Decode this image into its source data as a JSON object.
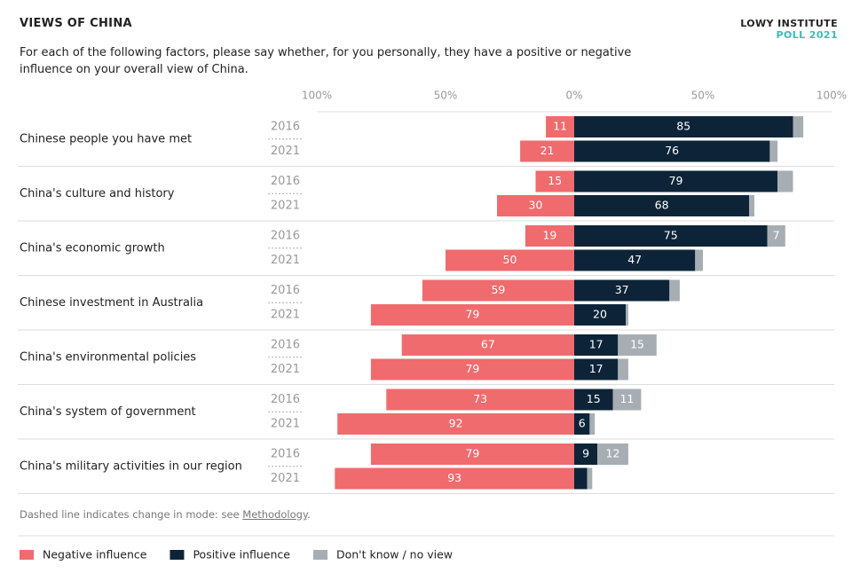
{
  "chart_data": {
    "type": "diverging-bar",
    "title": "VIEWS OF CHINA",
    "subtitle": "For each of the following factors, please say whether, for you personally, they have a positive or negative influence on your overall view of China.",
    "brand": "LOWY INSTITUTE",
    "brand_poll": "POLL 2021",
    "note": "Dashed line indicates change in mode: see ",
    "note_link": "Methodology",
    "note_end": ".",
    "categories": [
      "Chinese people you have met",
      "China's culture and history",
      "China's economic growth",
      "Chinese investment in Australia",
      "China's environmental policies",
      "China's system of government",
      "China's military activities in our region"
    ],
    "years": [
      "2016",
      "2021"
    ],
    "xlim": [
      -100,
      100
    ],
    "xticks": [
      {
        "value": -100,
        "label": "100%"
      },
      {
        "value": -50,
        "label": "50%"
      },
      {
        "value": 0,
        "label": "0%"
      },
      {
        "value": 50,
        "label": "50%"
      },
      {
        "value": 100,
        "label": "100%"
      }
    ],
    "series": [
      {
        "name": "Negative influence",
        "color": "#ef6b6e",
        "side": "left",
        "values": [
          [
            11,
            21
          ],
          [
            15,
            30
          ],
          [
            19,
            50
          ],
          [
            59,
            79
          ],
          [
            67,
            79
          ],
          [
            73,
            92
          ],
          [
            79,
            93
          ]
        ],
        "value_labels": [
          [
            "11",
            "21"
          ],
          [
            "15",
            "30"
          ],
          [
            "19",
            "50"
          ],
          [
            "59",
            "79"
          ],
          [
            "67",
            "79"
          ],
          [
            "73",
            "92"
          ],
          [
            "79",
            "93"
          ]
        ]
      },
      {
        "name": "Positive influence",
        "color": "#0d2438",
        "side": "right",
        "values": [
          [
            85,
            76
          ],
          [
            79,
            68
          ],
          [
            75,
            47
          ],
          [
            37,
            20
          ],
          [
            17,
            17
          ],
          [
            15,
            6
          ],
          [
            9,
            5
          ]
        ],
        "value_labels": [
          [
            "85",
            "76"
          ],
          [
            "79",
            "68"
          ],
          [
            "75",
            "47"
          ],
          [
            "37",
            "20"
          ],
          [
            "17",
            "17"
          ],
          [
            "15",
            "6"
          ],
          [
            "9",
            null
          ]
        ]
      },
      {
        "name": "Don't know / no view",
        "color": "#a6aeb4",
        "side": "right",
        "values": [
          [
            4,
            3
          ],
          [
            6,
            2
          ],
          [
            7,
            3
          ],
          [
            4,
            1
          ],
          [
            15,
            4
          ],
          [
            11,
            2
          ],
          [
            12,
            2
          ]
        ],
        "value_labels": [
          [
            null,
            null
          ],
          [
            null,
            null
          ],
          [
            "7",
            null
          ],
          [
            null,
            null
          ],
          [
            "15",
            null
          ],
          [
            "11",
            null
          ],
          [
            "12",
            null
          ]
        ]
      }
    ]
  }
}
